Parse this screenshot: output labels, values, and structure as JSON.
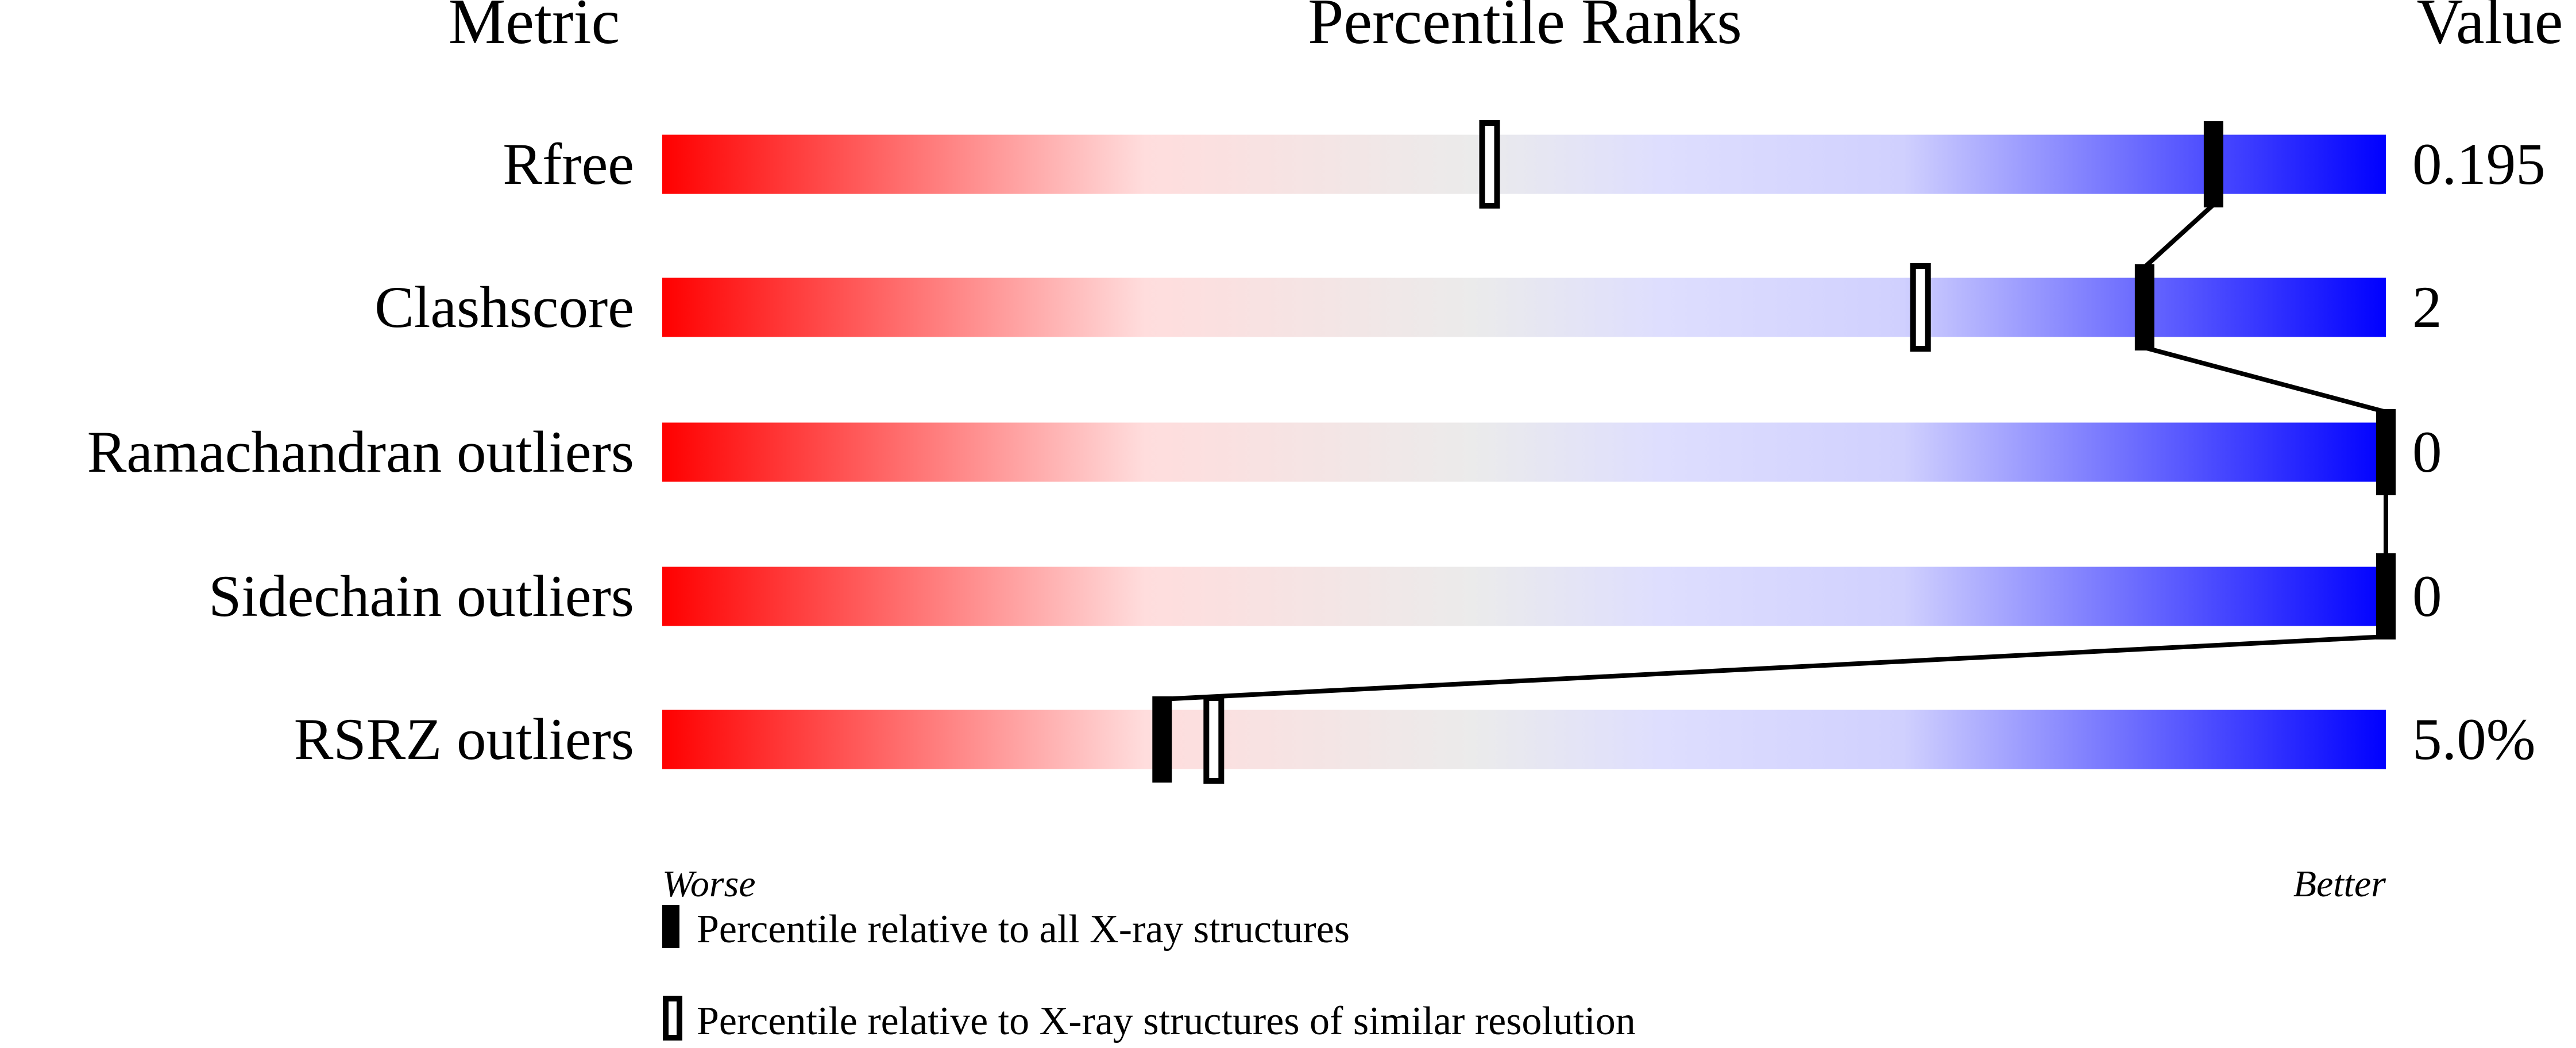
{
  "chart_data": {
    "type": "percentile-bar",
    "headers": {
      "metric": "Metric",
      "ranks": "Percentile Ranks",
      "value": "Value"
    },
    "xlim": [
      0,
      100
    ],
    "rows": [
      {
        "metric": "Rfree",
        "value": "0.195",
        "percentile_all": 90,
        "percentile_similar": 48
      },
      {
        "metric": "Clashscore",
        "value": "2",
        "percentile_all": 86,
        "percentile_similar": 73
      },
      {
        "metric": "Ramachandran outliers",
        "value": "0",
        "percentile_all": 100,
        "percentile_similar": null
      },
      {
        "metric": "Sidechain outliers",
        "value": "0",
        "percentile_all": 100,
        "percentile_similar": null
      },
      {
        "metric": "RSRZ outliers",
        "value": "5.0%",
        "percentile_all": 29,
        "percentile_similar": 32
      }
    ],
    "axis_labels": {
      "left": "Worse",
      "right": "Better"
    },
    "legend": [
      {
        "marker": "filled",
        "label": "Percentile relative to all X-ray structures"
      },
      {
        "marker": "open",
        "label": "Percentile relative to X-ray structures of similar resolution"
      }
    ],
    "gradient_colors": [
      "#ff0000",
      "#ffdddd",
      "#ebebeb",
      "#dedefe",
      "#0000ff"
    ]
  }
}
